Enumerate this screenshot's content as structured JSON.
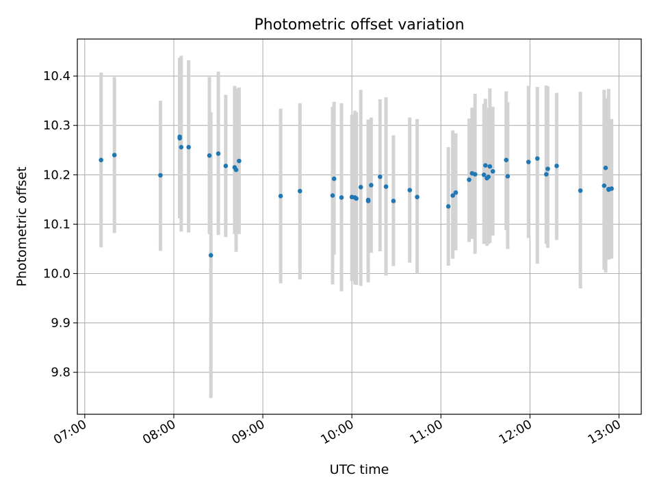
{
  "chart_data": {
    "type": "scatter",
    "title": "Photometric offset variation",
    "xlabel": "UTC time",
    "ylabel": "Photometric offset",
    "xlim": [
      "06:55",
      "13:15"
    ],
    "ylim": [
      9.715,
      10.475
    ],
    "x_ticks": [
      "07:00",
      "08:00",
      "09:00",
      "10:00",
      "11:00",
      "12:00",
      "13:00"
    ],
    "y_ticks": [
      "9.8",
      "9.9",
      "10.0",
      "10.1",
      "10.2",
      "10.3",
      "10.4"
    ],
    "grid": true,
    "colors": {
      "point": "#1f77b4",
      "errorbar": "#d3d3d3",
      "grid": "#b0b0b0"
    },
    "series": [
      {
        "x": [
          "07:11",
          "07:20",
          "07:51",
          "08:04",
          "08:04",
          "08:05",
          "08:10",
          "08:24",
          "08:25",
          "08:30",
          "08:35",
          "08:41",
          "08:42",
          "08:44",
          "09:12",
          "09:25",
          "09:47",
          "09:48",
          "09:53",
          "10:00",
          "10:02",
          "10:03",
          "10:06",
          "10:11",
          "10:11",
          "10:13",
          "10:19",
          "10:23",
          "10:28",
          "10:39",
          "10:44",
          "11:05",
          "11:08",
          "11:10",
          "11:19",
          "11:21",
          "11:23",
          "11:29",
          "11:30",
          "11:31",
          "11:32",
          "11:33",
          "11:35",
          "11:44",
          "11:45",
          "11:59",
          "12:05",
          "12:11",
          "12:12",
          "12:18",
          "12:34",
          "12:50",
          "12:51",
          "12:53",
          "12:53",
          "12:55"
        ],
        "y": [
          10.23,
          10.24,
          10.199,
          10.274,
          10.277,
          10.256,
          10.256,
          10.239,
          10.037,
          10.243,
          10.218,
          10.215,
          10.21,
          10.228,
          10.157,
          10.167,
          10.158,
          10.192,
          10.154,
          10.155,
          10.154,
          10.152,
          10.175,
          10.147,
          10.149,
          10.179,
          10.196,
          10.176,
          10.147,
          10.169,
          10.155,
          10.136,
          10.158,
          10.164,
          10.19,
          10.203,
          10.201,
          10.2,
          10.219,
          10.193,
          10.196,
          10.217,
          10.207,
          10.23,
          10.197,
          10.226,
          10.233,
          10.201,
          10.212,
          10.218,
          10.168,
          10.178,
          10.214,
          10.17,
          10.171,
          10.172
        ],
        "err_low": [
          10.053,
          10.082,
          10.046,
          10.112,
          10.112,
          10.085,
          10.083,
          10.08,
          9.748,
          10.078,
          10.074,
          10.08,
          10.044,
          10.08,
          9.98,
          9.988,
          9.978,
          10.038,
          9.964,
          9.985,
          9.978,
          9.977,
          9.975,
          9.982,
          9.985,
          10.042,
          10.045,
          9.996,
          10.015,
          10.022,
          10.0,
          10.016,
          10.03,
          10.047,
          10.064,
          10.07,
          10.04,
          10.06,
          10.085,
          10.056,
          10.06,
          10.062,
          10.077,
          10.088,
          10.05,
          10.072,
          10.02,
          10.06,
          10.052,
          10.068,
          9.97,
          10.008,
          10.002,
          10.06,
          10.028,
          10.03
        ],
        "err_high": [
          10.407,
          10.398,
          10.35,
          10.436,
          10.437,
          10.441,
          10.432,
          10.398,
          10.327,
          10.409,
          10.362,
          10.38,
          10.375,
          10.377,
          10.334,
          10.345,
          10.338,
          10.348,
          10.345,
          10.322,
          10.33,
          10.327,
          10.372,
          10.312,
          10.305,
          10.316,
          10.353,
          10.357,
          10.28,
          10.316,
          10.313,
          10.256,
          10.29,
          10.284,
          10.314,
          10.336,
          10.364,
          10.344,
          10.354,
          10.33,
          10.336,
          10.375,
          10.338,
          10.369,
          10.347,
          10.38,
          10.378,
          10.381,
          10.379,
          10.366,
          10.368,
          10.372,
          10.355,
          10.374,
          10.314,
          10.313
        ]
      }
    ]
  }
}
